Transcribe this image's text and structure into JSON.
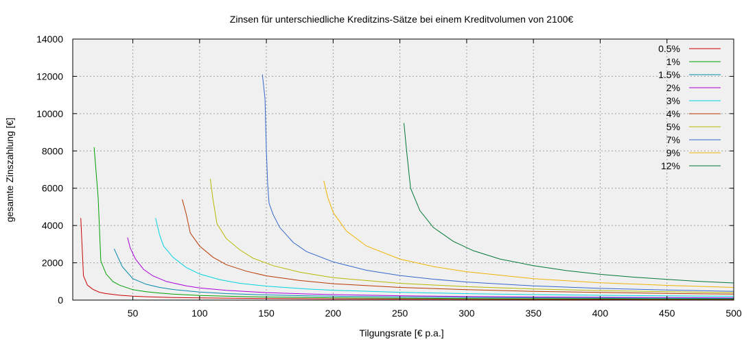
{
  "chart_data": {
    "type": "line",
    "title": "Zinsen für unterschiedliche Kreditzins-Sätze bei einem Kreditvolumen von 2100€",
    "xlabel": "Tilgungsrate [€ p.a.]",
    "ylabel": "gesamte Zinszahlung [€]",
    "xlim": [
      5,
      500
    ],
    "ylim": [
      0,
      14000
    ],
    "xticks": [
      "50",
      "100",
      "150",
      "200",
      "250",
      "300",
      "350",
      "400",
      "450",
      "500"
    ],
    "yticks": [
      "0",
      "2000",
      "4000",
      "6000",
      "8000",
      "10000",
      "12000",
      "14000"
    ],
    "grid": true,
    "plot_background": "#f0f0f0",
    "legend_placement": "top-right",
    "series": [
      {
        "name": "0.5%",
        "color": "#cc0000",
        "points": [
          [
            11,
            4400
          ],
          [
            13,
            1300
          ],
          [
            16,
            800
          ],
          [
            20,
            580
          ],
          [
            25,
            420
          ],
          [
            30,
            350
          ],
          [
            40,
            260
          ],
          [
            50,
            210
          ],
          [
            60,
            180
          ],
          [
            80,
            140
          ],
          [
            100,
            120
          ],
          [
            130,
            95
          ],
          [
            160,
            80
          ],
          [
            200,
            65
          ],
          [
            250,
            55
          ],
          [
            300,
            48
          ],
          [
            350,
            42
          ],
          [
            400,
            37
          ],
          [
            450,
            34
          ],
          [
            500,
            32
          ]
        ]
      },
      {
        "name": "1%",
        "color": "#00a000",
        "points": [
          [
            21,
            8200
          ],
          [
            24,
            5500
          ],
          [
            26,
            2100
          ],
          [
            30,
            1400
          ],
          [
            35,
            1000
          ],
          [
            40,
            800
          ],
          [
            50,
            560
          ],
          [
            60,
            450
          ],
          [
            70,
            380
          ],
          [
            80,
            320
          ],
          [
            100,
            250
          ],
          [
            130,
            190
          ],
          [
            160,
            155
          ],
          [
            200,
            125
          ],
          [
            250,
            100
          ],
          [
            300,
            85
          ],
          [
            350,
            75
          ],
          [
            400,
            68
          ],
          [
            450,
            62
          ],
          [
            500,
            58
          ]
        ]
      },
      {
        "name": "1.5%",
        "color": "#0088aa",
        "points": [
          [
            36,
            2750
          ],
          [
            42,
            1800
          ],
          [
            50,
            1150
          ],
          [
            60,
            850
          ],
          [
            70,
            680
          ],
          [
            80,
            570
          ],
          [
            100,
            430
          ],
          [
            120,
            350
          ],
          [
            150,
            280
          ],
          [
            180,
            230
          ],
          [
            200,
            210
          ],
          [
            250,
            170
          ],
          [
            300,
            145
          ],
          [
            350,
            125
          ],
          [
            400,
            110
          ],
          [
            450,
            100
          ],
          [
            500,
            92
          ]
        ]
      },
      {
        "name": "2%",
        "color": "#aa00dd",
        "points": [
          [
            46,
            3350
          ],
          [
            48,
            2800
          ],
          [
            52,
            2200
          ],
          [
            58,
            1650
          ],
          [
            65,
            1300
          ],
          [
            75,
            1000
          ],
          [
            90,
            760
          ],
          [
            100,
            650
          ],
          [
            120,
            520
          ],
          [
            150,
            400
          ],
          [
            180,
            330
          ],
          [
            200,
            295
          ],
          [
            250,
            235
          ],
          [
            300,
            195
          ],
          [
            350,
            170
          ],
          [
            400,
            150
          ],
          [
            450,
            135
          ],
          [
            500,
            122
          ]
        ]
      },
      {
        "name": "3%",
        "color": "#00d4e0",
        "points": [
          [
            67,
            4400
          ],
          [
            70,
            3500
          ],
          [
            73,
            2900
          ],
          [
            80,
            2300
          ],
          [
            90,
            1750
          ],
          [
            100,
            1400
          ],
          [
            115,
            1100
          ],
          [
            130,
            900
          ],
          [
            150,
            750
          ],
          [
            180,
            600
          ],
          [
            200,
            530
          ],
          [
            250,
            420
          ],
          [
            300,
            345
          ],
          [
            350,
            295
          ],
          [
            400,
            258
          ],
          [
            450,
            228
          ],
          [
            500,
            205
          ]
        ]
      },
      {
        "name": "4%",
        "color": "#b83800",
        "points": [
          [
            87,
            5400
          ],
          [
            90,
            4600
          ],
          [
            93,
            3600
          ],
          [
            100,
            2900
          ],
          [
            110,
            2300
          ],
          [
            120,
            1900
          ],
          [
            135,
            1550
          ],
          [
            150,
            1300
          ],
          [
            175,
            1050
          ],
          [
            200,
            880
          ],
          [
            250,
            680
          ],
          [
            300,
            560
          ],
          [
            350,
            470
          ],
          [
            400,
            410
          ],
          [
            450,
            360
          ],
          [
            500,
            320
          ]
        ]
      },
      {
        "name": "5%",
        "color": "#b8b800",
        "points": [
          [
            108,
            6500
          ],
          [
            110,
            5400
          ],
          [
            113,
            4100
          ],
          [
            120,
            3300
          ],
          [
            130,
            2700
          ],
          [
            140,
            2250
          ],
          [
            155,
            1850
          ],
          [
            175,
            1500
          ],
          [
            200,
            1200
          ],
          [
            250,
            900
          ],
          [
            300,
            720
          ],
          [
            350,
            600
          ],
          [
            400,
            510
          ],
          [
            450,
            450
          ],
          [
            500,
            400
          ]
        ]
      },
      {
        "name": "7%",
        "color": "#3366cc",
        "points": [
          [
            147,
            12100
          ],
          [
            149,
            10800
          ],
          [
            150,
            8000
          ],
          [
            151,
            6200
          ],
          [
            152,
            5200
          ],
          [
            155,
            4600
          ],
          [
            160,
            3900
          ],
          [
            170,
            3100
          ],
          [
            180,
            2600
          ],
          [
            200,
            2050
          ],
          [
            225,
            1600
          ],
          [
            250,
            1320
          ],
          [
            275,
            1120
          ],
          [
            300,
            970
          ],
          [
            350,
            760
          ],
          [
            400,
            630
          ],
          [
            450,
            540
          ],
          [
            500,
            470
          ]
        ]
      },
      {
        "name": "9%",
        "color": "#f0b400",
        "points": [
          [
            193,
            6400
          ],
          [
            196,
            5500
          ],
          [
            200,
            4700
          ],
          [
            210,
            3700
          ],
          [
            225,
            2900
          ],
          [
            250,
            2200
          ],
          [
            275,
            1800
          ],
          [
            300,
            1520
          ],
          [
            350,
            1150
          ],
          [
            400,
            930
          ],
          [
            450,
            790
          ],
          [
            500,
            680
          ]
        ]
      },
      {
        "name": "12%",
        "color": "#007733",
        "points": [
          [
            253,
            9500
          ],
          [
            255,
            8000
          ],
          [
            258,
            6000
          ],
          [
            265,
            4800
          ],
          [
            275,
            3900
          ],
          [
            290,
            3150
          ],
          [
            305,
            2650
          ],
          [
            325,
            2200
          ],
          [
            350,
            1850
          ],
          [
            375,
            1580
          ],
          [
            400,
            1380
          ],
          [
            425,
            1230
          ],
          [
            450,
            1110
          ],
          [
            475,
            1000
          ],
          [
            500,
            920
          ]
        ]
      }
    ]
  }
}
